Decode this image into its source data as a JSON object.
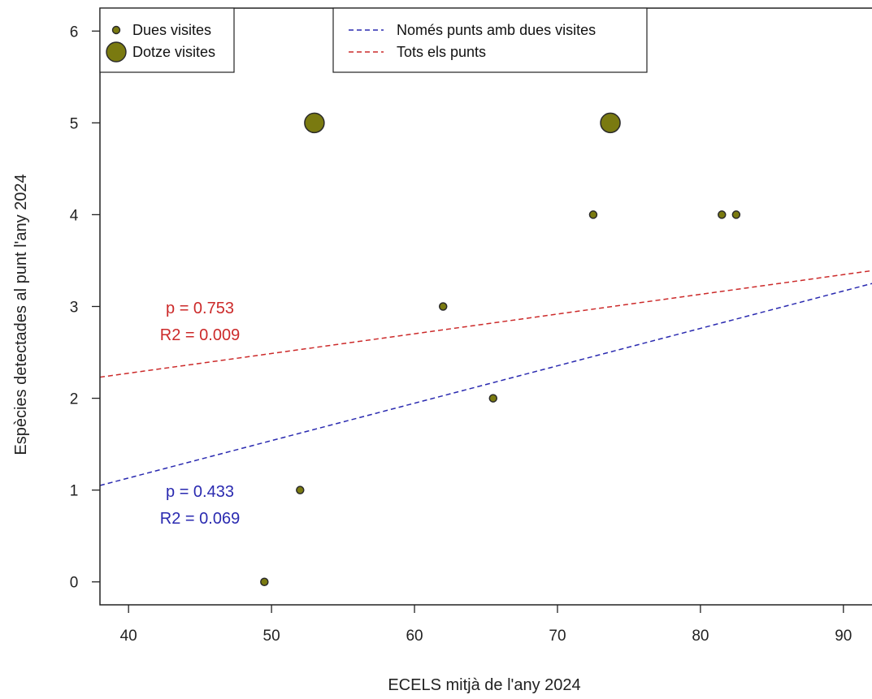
{
  "chart_data": {
    "type": "scatter",
    "title": "",
    "xlabel": "ECELS mitjà de l'any 2024",
    "ylabel": "Espècies detectades al punt l'any 2024",
    "xlim": [
      38,
      92
    ],
    "ylim": [
      -0.25,
      6.25
    ],
    "x_ticks": [
      40,
      50,
      60,
      70,
      80,
      90
    ],
    "y_ticks": [
      0,
      1,
      2,
      3,
      4,
      5,
      6
    ],
    "grid": false,
    "point_color": "#7a7a10",
    "series": [
      {
        "name": "Dues visites",
        "marker_size": "small",
        "points": [
          {
            "x": 49.5,
            "y": 0
          },
          {
            "x": 52.0,
            "y": 1
          },
          {
            "x": 62.0,
            "y": 3
          },
          {
            "x": 65.5,
            "y": 2
          },
          {
            "x": 72.5,
            "y": 4
          },
          {
            "x": 81.5,
            "y": 4
          },
          {
            "x": 82.5,
            "y": 4
          }
        ]
      },
      {
        "name": "Dotze visites",
        "marker_size": "large",
        "points": [
          {
            "x": 53.0,
            "y": 5
          },
          {
            "x": 73.7,
            "y": 5
          }
        ]
      }
    ],
    "regression_lines": [
      {
        "name": "Només punts amb dues visites",
        "color": "#2a2ab0",
        "style": "dashed",
        "from": {
          "x": 38,
          "y": 1.05
        },
        "to": {
          "x": 92,
          "y": 3.25
        },
        "p_label": "p = 0.433",
        "r2_label": "R2 = 0.069"
      },
      {
        "name": "Tots els punts",
        "color": "#cc2a2a",
        "style": "dashed",
        "from": {
          "x": 38,
          "y": 2.23
        },
        "to": {
          "x": 92,
          "y": 3.39
        },
        "p_label": "p = 0.753",
        "r2_label": "R2 = 0.009"
      }
    ],
    "legends": [
      {
        "placement": "top-left",
        "entries": [
          "Dues visites",
          "Dotze visites"
        ]
      },
      {
        "placement": "top-center",
        "entries": [
          "Només punts amb dues visites",
          "Tots els punts"
        ]
      }
    ]
  }
}
